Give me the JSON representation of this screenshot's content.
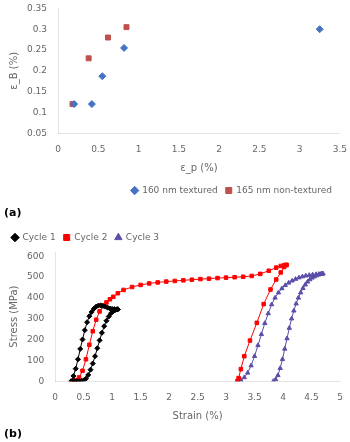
{
  "chart_data": [
    {
      "type": "scatter",
      "xlabel": "ε_p (%)",
      "ylabel": "ε_B (%)",
      "annotations": [
        "(a)"
      ],
      "xlim": [
        0,
        3.5
      ],
      "ylim": [
        0.05,
        0.35
      ],
      "xticks": [
        0,
        0.5,
        1.0,
        1.5,
        2.0,
        2.5,
        3.0,
        3.5
      ],
      "yticks": [
        0.05,
        0.1,
        0.15,
        0.2,
        0.25,
        0.3,
        0.35
      ],
      "grid": false,
      "legend": "lower right",
      "series": [
        {
          "name": "160 nm textured",
          "color": "#4472c4",
          "marker": "diamond",
          "x": [
            0.2,
            0.42,
            0.55,
            0.82,
            3.25
          ],
          "values": [
            0.12,
            0.12,
            0.187,
            0.255,
            0.3
          ]
        },
        {
          "name": "165 nm non-textured",
          "color": "#c0504d",
          "marker": "square",
          "x": [
            0.18,
            0.38,
            0.62,
            0.85
          ],
          "values": [
            0.12,
            0.23,
            0.28,
            0.305
          ]
        }
      ]
    },
    {
      "type": "line",
      "xlabel": "Strain (%)",
      "ylabel": "Stress (MPa)",
      "annotations": [
        "(b)"
      ],
      "xlim": [
        0,
        5
      ],
      "ylim": [
        0,
        620
      ],
      "xticks": [
        0,
        0.5,
        1.0,
        1.5,
        2.0,
        2.5,
        3.0,
        3.5,
        4.0,
        4.5,
        5.0
      ],
      "yticks": [
        0,
        100,
        200,
        300,
        400,
        500,
        600
      ],
      "grid": false,
      "legend": "upper left",
      "series": [
        {
          "name": "Cycle 1",
          "color": "#000000",
          "marker": "diamond",
          "x": [
            0.28,
            0.32,
            0.36,
            0.4,
            0.44,
            0.48,
            0.52,
            0.56,
            0.6,
            0.64,
            0.68,
            0.72,
            0.76,
            0.8,
            0.84,
            0.88,
            0.92,
            0.96,
            1.0,
            1.04,
            1.08,
            1.1,
            1.1,
            1.06,
            1.02,
            0.98,
            0.94,
            0.9,
            0.86,
            0.82,
            0.78,
            0.74,
            0.7,
            0.66,
            0.62,
            0.58,
            0.54,
            0.5,
            0.46,
            0.42,
            0.38,
            0.34,
            0.3
          ],
          "values": [
            0,
            25,
            60,
            105,
            155,
            200,
            245,
            283,
            312,
            332,
            348,
            358,
            363,
            364,
            362,
            358,
            353,
            349,
            347,
            346,
            345,
            345,
            345,
            342,
            336,
            326,
            310,
            290,
            264,
            232,
            196,
            158,
            120,
            85,
            55,
            30,
            12,
            4,
            1,
            0,
            0,
            0,
            0
          ]
        },
        {
          "name": "Cycle 2",
          "color": "#ff0000",
          "marker": "square",
          "x": [
            0.3,
            0.36,
            0.42,
            0.48,
            0.54,
            0.6,
            0.66,
            0.72,
            0.78,
            0.84,
            0.9,
            0.96,
            1.02,
            1.1,
            1.2,
            1.35,
            1.5,
            1.65,
            1.8,
            1.95,
            2.1,
            2.25,
            2.4,
            2.55,
            2.7,
            2.85,
            3.0,
            3.15,
            3.3,
            3.45,
            3.6,
            3.75,
            3.88,
            3.96,
            4.02,
            4.06,
            4.06,
            4.02,
            3.96,
            3.88,
            3.78,
            3.66,
            3.54,
            3.42,
            3.32,
            3.26,
            3.22,
            3.2
          ],
          "values": [
            0,
            5,
            18,
            50,
            105,
            175,
            240,
            295,
            335,
            360,
            378,
            393,
            405,
            422,
            438,
            452,
            462,
            469,
            474,
            478,
            481,
            484,
            487,
            490,
            492,
            495,
            497,
            499,
            501,
            505,
            515,
            530,
            545,
            553,
            557,
            558,
            558,
            548,
            522,
            488,
            440,
            370,
            280,
            195,
            120,
            58,
            15,
            0
          ]
        },
        {
          "name": "Cycle 3",
          "color": "#5b4ea8",
          "marker": "triangle",
          "x": [
            3.2,
            3.26,
            3.32,
            3.38,
            3.44,
            3.5,
            3.56,
            3.62,
            3.68,
            3.74,
            3.8,
            3.86,
            3.92,
            3.98,
            4.04,
            4.1,
            4.16,
            4.22,
            4.28,
            4.34,
            4.4,
            4.46,
            4.52,
            4.58,
            4.63,
            4.67,
            4.7,
            4.7,
            4.67,
            4.63,
            4.59,
            4.55,
            4.51,
            4.47,
            4.43,
            4.39,
            4.35,
            4.31,
            4.27,
            4.23,
            4.19,
            4.15,
            4.11,
            4.07,
            4.03,
            3.99,
            3.95,
            3.91,
            3.87,
            3.83
          ],
          "values": [
            0,
            5,
            18,
            40,
            75,
            120,
            172,
            225,
            278,
            325,
            368,
            400,
            425,
            445,
            460,
            472,
            482,
            490,
            497,
            502,
            506,
            509,
            511,
            513,
            514,
            515,
            516,
            516,
            514,
            511,
            507,
            502,
            496,
            488,
            477,
            463,
            446,
            425,
            400,
            372,
            338,
            300,
            255,
            205,
            155,
            105,
            62,
            28,
            8,
            0
          ]
        }
      ]
    }
  ]
}
